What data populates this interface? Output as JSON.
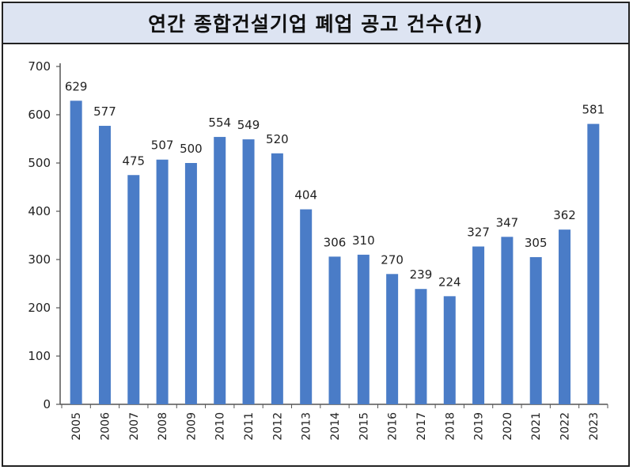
{
  "chart_data": {
    "type": "bar",
    "title": "연간 종합건설기업 폐업 공고 건수(건)",
    "categories": [
      "2005",
      "2006",
      "2007",
      "2008",
      "2009",
      "2010",
      "2011",
      "2012",
      "2013",
      "2014",
      "2015",
      "2016",
      "2017",
      "2018",
      "2019",
      "2020",
      "2021",
      "2022",
      "2023"
    ],
    "values": [
      629,
      577,
      475,
      507,
      500,
      554,
      549,
      520,
      404,
      306,
      310,
      270,
      239,
      224,
      327,
      347,
      305,
      362,
      581
    ],
    "ylim": [
      0,
      700
    ],
    "yticks": [
      0,
      100,
      200,
      300,
      400,
      500,
      600,
      700
    ],
    "grid": false,
    "bar_color": "#4a7cc7",
    "title_bg": "#dde4f2"
  }
}
